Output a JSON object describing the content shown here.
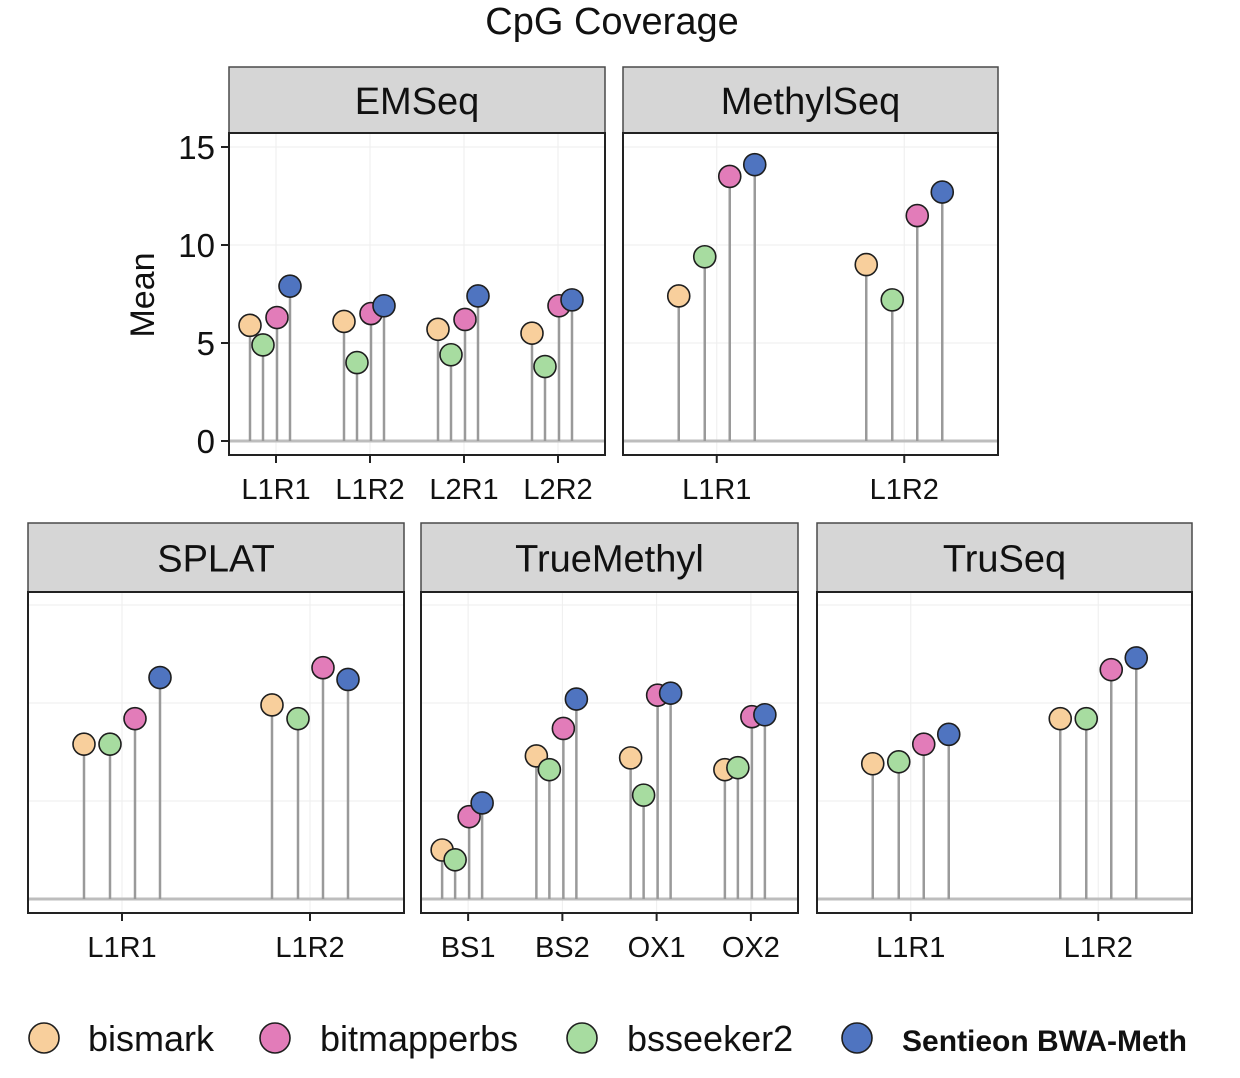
{
  "chart_data": {
    "type": "lollipop",
    "title": "CpG Coverage",
    "ylabel": "Mean",
    "ylim": [
      0,
      15
    ],
    "yticks": [
      "0",
      "5",
      "10",
      "15"
    ],
    "series_order": [
      "bismark",
      "bitmapperbs",
      "bsseeker2",
      "Sentieon BWA-Meth"
    ],
    "colors": {
      "bismark": "#f8cf9c",
      "bitmapperbs": "#e27cb9",
      "bsseeker2": "#a7dca0",
      "Sentieon BWA-Meth": "#4f74c0"
    },
    "plot_order": [
      "bismark",
      "bsseeker2",
      "bitmapperbs",
      "Sentieon BWA-Meth"
    ],
    "panels": [
      {
        "name": "EMSeq",
        "categories": [
          "L1R1",
          "L1R2",
          "L2R1",
          "L2R2"
        ],
        "values": {
          "bismark": [
            5.9,
            6.1,
            5.7,
            5.5
          ],
          "bitmapperbs": [
            6.3,
            6.5,
            6.2,
            6.9
          ],
          "bsseeker2": [
            4.9,
            4.0,
            4.4,
            3.8
          ],
          "Sentieon BWA-Meth": [
            7.9,
            6.9,
            7.4,
            7.2
          ]
        }
      },
      {
        "name": "MethylSeq",
        "categories": [
          "L1R1",
          "L1R2"
        ],
        "values": {
          "bismark": [
            7.4,
            9.0
          ],
          "bitmapperbs": [
            13.5,
            11.5
          ],
          "bsseeker2": [
            9.4,
            7.2
          ],
          "Sentieon BWA-Meth": [
            14.1,
            12.7
          ]
        }
      },
      {
        "name": "SPLAT",
        "categories": [
          "L1R1",
          "L1R2"
        ],
        "values": {
          "bismark": [
            7.9,
            9.9
          ],
          "bitmapperbs": [
            9.2,
            11.8
          ],
          "bsseeker2": [
            7.9,
            9.2
          ],
          "Sentieon BWA-Meth": [
            11.3,
            11.2
          ]
        }
      },
      {
        "name": "TrueMethyl",
        "categories": [
          "BS1",
          "BS2",
          "OX1",
          "OX2"
        ],
        "values": {
          "bismark": [
            2.5,
            7.3,
            7.2,
            6.6
          ],
          "bitmapperbs": [
            4.2,
            8.7,
            10.4,
            9.3
          ],
          "bsseeker2": [
            2.0,
            6.6,
            5.3,
            6.7
          ],
          "Sentieon BWA-Meth": [
            4.9,
            10.2,
            10.5,
            9.4
          ]
        }
      },
      {
        "name": "TruSeq",
        "categories": [
          "L1R1",
          "L1R2"
        ],
        "values": {
          "bismark": [
            6.9,
            9.2
          ],
          "bitmapperbs": [
            7.9,
            11.7
          ],
          "bsseeker2": [
            7.0,
            9.2
          ],
          "Sentieon BWA-Meth": [
            8.4,
            12.3
          ]
        }
      }
    ],
    "legend": {
      "position": "bottom",
      "entries": [
        "bismark",
        "bitmapperbs",
        "bsseeker2",
        "Sentieon BWA-Meth"
      ]
    }
  }
}
